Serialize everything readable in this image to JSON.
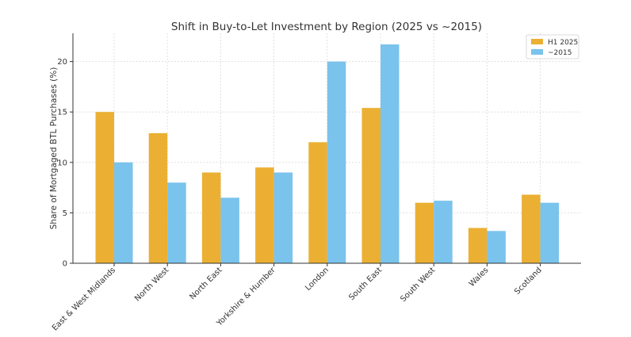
{
  "chart_data": {
    "type": "bar",
    "title": "Shift in Buy-to-Let Investment by Region (2025 vs ~2015)",
    "xlabel": "",
    "ylabel": "Share of Mortgaged BTL Purchases (%)",
    "ylim": [
      0,
      22.8
    ],
    "yticks": [
      0,
      5,
      10,
      15,
      20
    ],
    "grid": true,
    "legend_position": "top-right",
    "categories": [
      "East & West Midlands",
      "North West",
      "North East",
      "Yorkshire & Humber",
      "London",
      "South East",
      "South West",
      "Wales",
      "Scotland"
    ],
    "series": [
      {
        "name": "H1 2025",
        "color": "#EBB033",
        "values": [
          15.0,
          12.9,
          9.0,
          9.5,
          12.0,
          15.4,
          6.0,
          3.5,
          6.8
        ]
      },
      {
        "name": "~2015",
        "color": "#7AC3EC",
        "values": [
          10.0,
          8.0,
          6.5,
          9.0,
          20.0,
          21.7,
          6.2,
          3.2,
          6.0
        ]
      }
    ]
  }
}
